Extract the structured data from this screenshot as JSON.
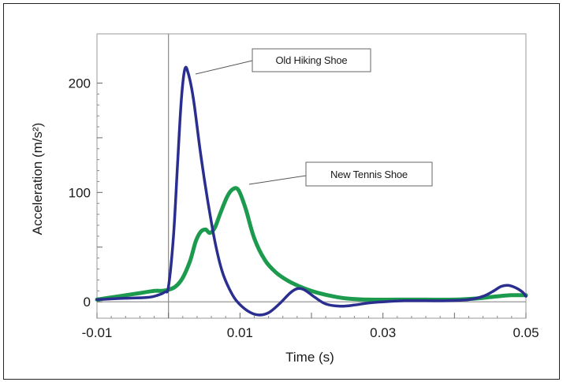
{
  "chart_data": {
    "type": "line",
    "title": "",
    "xlabel": "Time (s)",
    "ylabel": "Acceleration (m/s²)",
    "xlim": [
      -0.01,
      0.05
    ],
    "ylim": [
      -15,
      245
    ],
    "grid": false,
    "x_ticks": [
      -0.01,
      0.0,
      0.01,
      0.02,
      0.03,
      0.04,
      0.05
    ],
    "x_tick_labels": [
      {
        "value": -0.01,
        "label": "-0.01"
      },
      {
        "value": 0.01,
        "label": "0.01"
      },
      {
        "value": 0.03,
        "label": "0.03"
      },
      {
        "value": 0.05,
        "label": "0.05"
      }
    ],
    "y_ticks": [
      0,
      50,
      100,
      150,
      200
    ],
    "y_tick_labels": [
      {
        "value": 0,
        "label": "0"
      },
      {
        "value": 100,
        "label": "100"
      },
      {
        "value": 200,
        "label": "200"
      }
    ],
    "annotations": [
      {
        "text": "Old Hiking Shoe",
        "series": "Old Hiking Shoe"
      },
      {
        "text": "New Tennis Shoe",
        "series": "New Tennis Shoe"
      }
    ],
    "series": [
      {
        "name": "Old Hiking Shoe",
        "color": "#2a2f8f",
        "points": [
          [
            -0.01,
            2
          ],
          [
            -0.007,
            3
          ],
          [
            -0.003,
            4
          ],
          [
            -0.0015,
            6
          ],
          [
            -0.0005,
            9
          ],
          [
            0.0,
            14
          ],
          [
            0.0007,
            60
          ],
          [
            0.0013,
            130
          ],
          [
            0.0018,
            185
          ],
          [
            0.0023,
            213
          ],
          [
            0.0028,
            208
          ],
          [
            0.0035,
            185
          ],
          [
            0.0045,
            135
          ],
          [
            0.0055,
            92
          ],
          [
            0.0065,
            55
          ],
          [
            0.0075,
            28
          ],
          [
            0.0085,
            12
          ],
          [
            0.0095,
            1
          ],
          [
            0.011,
            -8
          ],
          [
            0.0125,
            -12
          ],
          [
            0.014,
            -10
          ],
          [
            0.0155,
            -2
          ],
          [
            0.017,
            8
          ],
          [
            0.018,
            12
          ],
          [
            0.019,
            11
          ],
          [
            0.0205,
            4
          ],
          [
            0.022,
            -2
          ],
          [
            0.024,
            -4
          ],
          [
            0.026,
            -3
          ],
          [
            0.028,
            -1
          ],
          [
            0.03,
            0
          ],
          [
            0.033,
            1
          ],
          [
            0.036,
            1
          ],
          [
            0.039,
            1
          ],
          [
            0.042,
            2
          ],
          [
            0.044,
            5
          ],
          [
            0.0455,
            10
          ],
          [
            0.0465,
            14
          ],
          [
            0.0475,
            15
          ],
          [
            0.0485,
            13
          ],
          [
            0.0495,
            9
          ],
          [
            0.05,
            5
          ]
        ]
      },
      {
        "name": "New Tennis Shoe",
        "color": "#1c9a4d",
        "points": [
          [
            -0.01,
            2
          ],
          [
            -0.008,
            4
          ],
          [
            -0.006,
            6
          ],
          [
            -0.004,
            8
          ],
          [
            -0.002,
            10
          ],
          [
            -0.001,
            10
          ],
          [
            0.0,
            11
          ],
          [
            0.001,
            14
          ],
          [
            0.002,
            22
          ],
          [
            0.003,
            37
          ],
          [
            0.0038,
            55
          ],
          [
            0.0045,
            64
          ],
          [
            0.0052,
            66
          ],
          [
            0.0058,
            63
          ],
          [
            0.0065,
            68
          ],
          [
            0.0072,
            80
          ],
          [
            0.0082,
            96
          ],
          [
            0.009,
            103
          ],
          [
            0.0098,
            102
          ],
          [
            0.0108,
            85
          ],
          [
            0.012,
            58
          ],
          [
            0.0135,
            38
          ],
          [
            0.015,
            27
          ],
          [
            0.0165,
            20
          ],
          [
            0.018,
            15
          ],
          [
            0.0195,
            11
          ],
          [
            0.021,
            8
          ],
          [
            0.023,
            5
          ],
          [
            0.025,
            3
          ],
          [
            0.028,
            2
          ],
          [
            0.032,
            2
          ],
          [
            0.036,
            2
          ],
          [
            0.04,
            2
          ],
          [
            0.043,
            3
          ],
          [
            0.046,
            5
          ],
          [
            0.048,
            6
          ],
          [
            0.05,
            6
          ]
        ]
      }
    ]
  }
}
